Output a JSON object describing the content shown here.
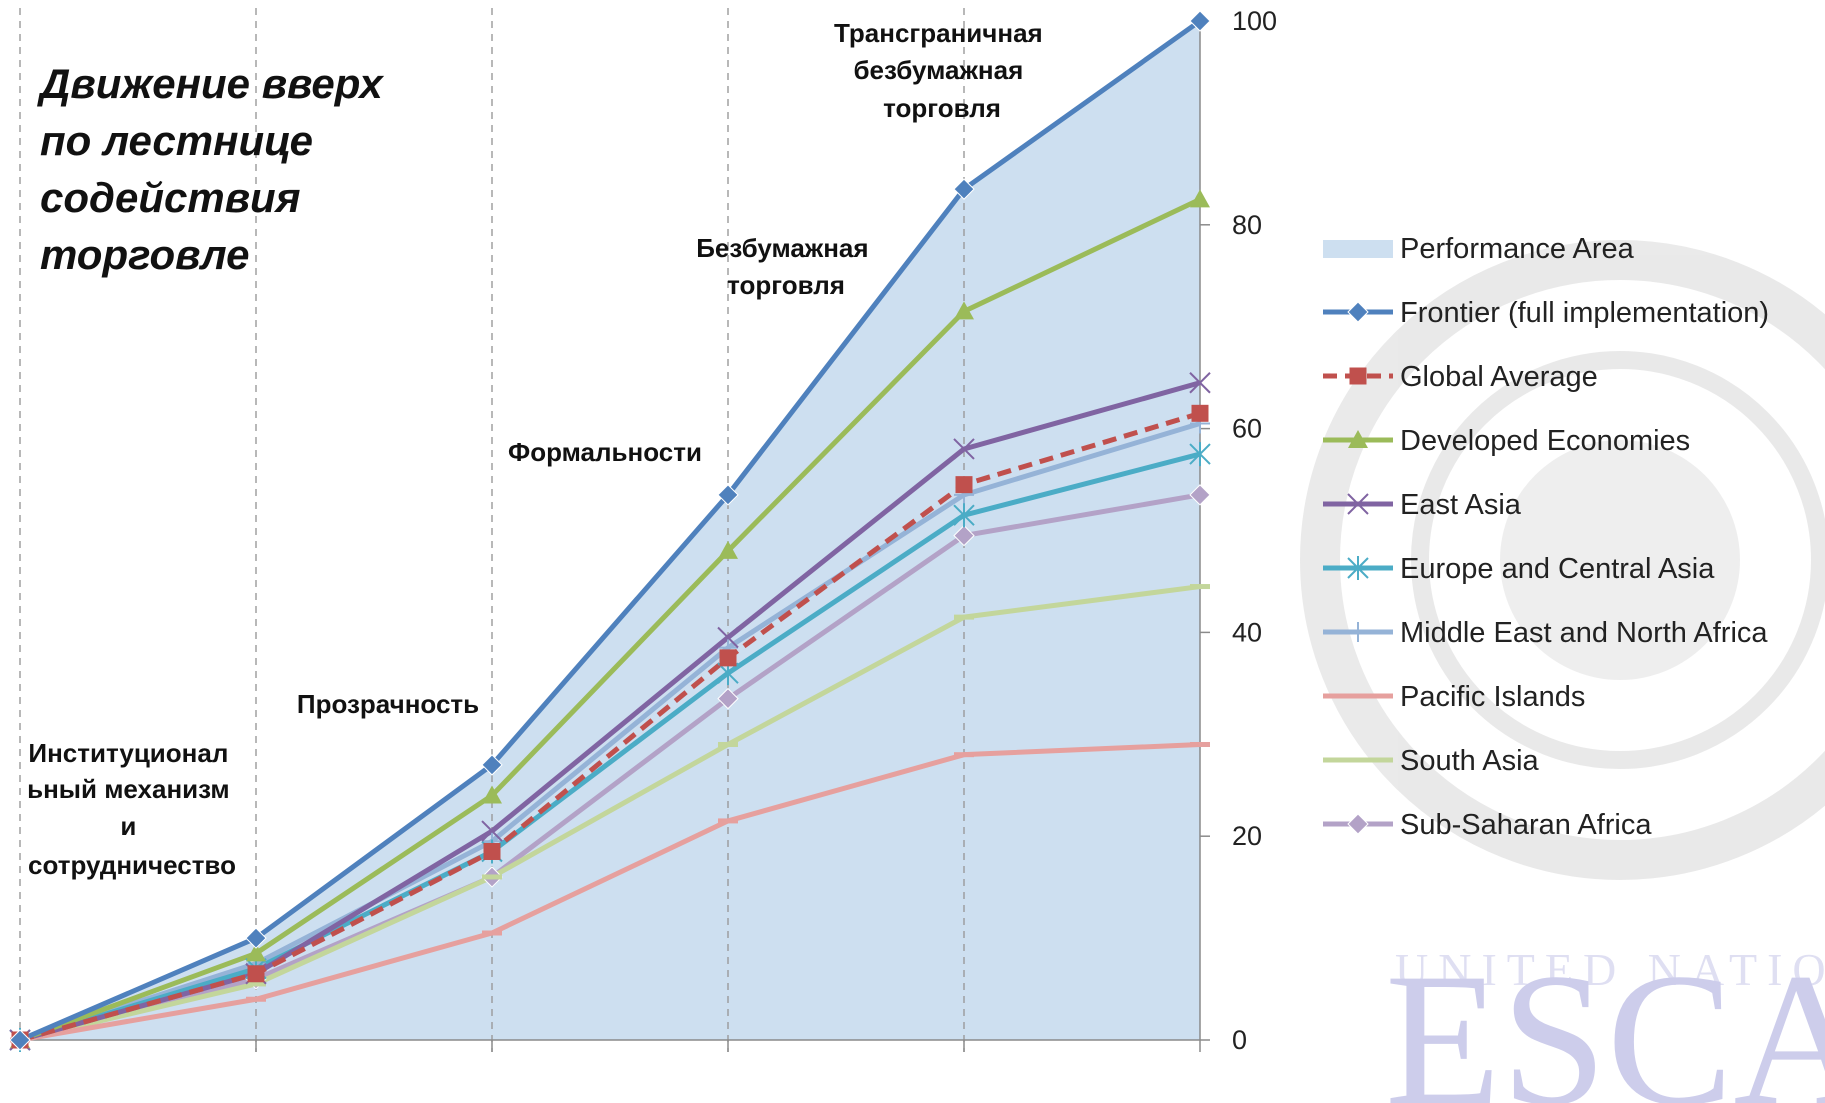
{
  "title": "Движение вверх по лестнице содействия торговле",
  "title_lines": [
    "Движение вверх",
    "по лестнице",
    "содействия",
    "торговле"
  ],
  "stages": [
    {
      "lines": [
        "Институционал",
        "ьный механизм",
        "и",
        "сотрудничество"
      ]
    },
    {
      "lines": [
        "Прозрачность"
      ]
    },
    {
      "lines": [
        "Формальности"
      ]
    },
    {
      "lines": [
        "Безбумажная",
        "торговля"
      ]
    },
    {
      "lines": [
        "Трансграничная",
        "безбумажная",
        "торговля"
      ]
    }
  ],
  "watermark": {
    "top": "UNITED NATIONS",
    "bottom": "ESCAP"
  },
  "chart_data": {
    "type": "line",
    "x": [
      0,
      1,
      2,
      3,
      4,
      5
    ],
    "ylim": [
      0,
      100
    ],
    "yticks": [
      0,
      20,
      40,
      60,
      80,
      100
    ],
    "grid": "vertical dashed",
    "legend_position": "right",
    "area": {
      "name": "Performance Area",
      "color": "#cddff0"
    },
    "series": [
      {
        "name": "Frontier (full implementation)",
        "color": "#4f81bd",
        "marker": "diamond",
        "dashed": false,
        "values": [
          0,
          10,
          27,
          53.5,
          83.5,
          100
        ]
      },
      {
        "name": "Global Average",
        "color": "#c0504d",
        "marker": "square",
        "dashed": true,
        "values": [
          0,
          6.5,
          18.5,
          37.5,
          54.5,
          61.5
        ]
      },
      {
        "name": "Developed Economies",
        "color": "#9bbb59",
        "marker": "triangle",
        "dashed": false,
        "values": [
          0,
          8.5,
          24,
          48,
          71.5,
          82.5
        ]
      },
      {
        "name": "East Asia",
        "color": "#8064a2",
        "marker": "x",
        "dashed": false,
        "values": [
          0,
          6.5,
          20.5,
          39.5,
          58,
          64.5
        ]
      },
      {
        "name": "Europe and Central Asia",
        "color": "#4bacc6",
        "marker": "star",
        "dashed": false,
        "values": [
          0,
          7,
          18.5,
          36,
          51.5,
          57.5
        ]
      },
      {
        "name": "Middle East and North Africa",
        "color": "#95b3d7",
        "marker": "plus",
        "dashed": false,
        "values": [
          0,
          7.5,
          19.5,
          38.5,
          53.5,
          60.5
        ]
      },
      {
        "name": "Pacific Islands",
        "color": "#e6a09e",
        "marker": "dash",
        "dashed": false,
        "values": [
          0,
          4,
          10.5,
          21.5,
          28,
          29
        ]
      },
      {
        "name": "South Asia",
        "color": "#c3d69b",
        "marker": "dash",
        "dashed": false,
        "values": [
          0,
          5.5,
          16,
          29,
          41.5,
          44.5
        ]
      },
      {
        "name": "Sub-Saharan Africa",
        "color": "#b3a2c7",
        "marker": "diamond",
        "dashed": false,
        "values": [
          0,
          6,
          16,
          33.5,
          49.5,
          53.5
        ]
      }
    ]
  }
}
